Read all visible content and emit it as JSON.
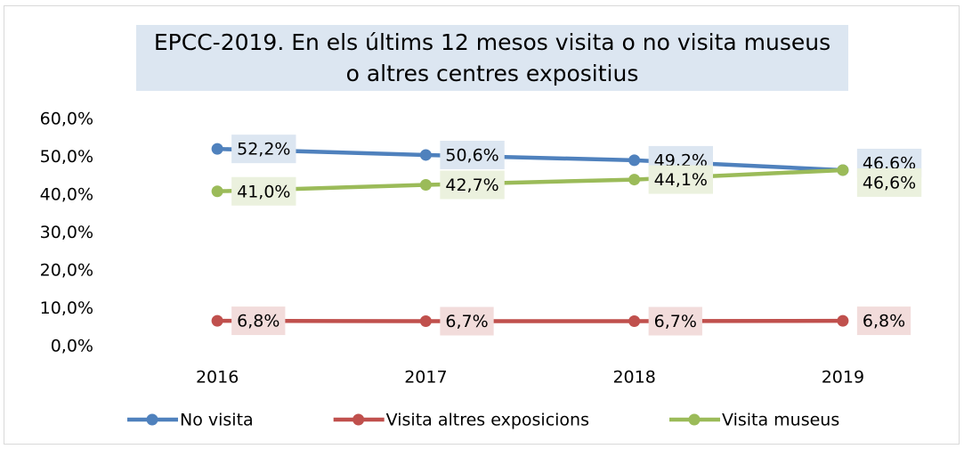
{
  "chart_data": {
    "type": "line",
    "title": "EPCC-2019. En els últims 12 mesos visita o no visita museus o altres centres expositius",
    "categories": [
      "2016",
      "2017",
      "2018",
      "2019"
    ],
    "series": [
      {
        "name": "No visita",
        "color": "#4f81bd",
        "label_bg": "#dce6f1",
        "values": [
          52.2,
          50.6,
          49.2,
          46.6
        ],
        "value_labels": [
          "52,2%",
          "50,6%",
          "49,2%",
          "46,6%"
        ]
      },
      {
        "name": "Visita altres exposicions",
        "color": "#c0504d",
        "label_bg": "#f2dcdb",
        "values": [
          6.8,
          6.7,
          6.7,
          6.8
        ],
        "value_labels": [
          "6,8%",
          "6,7%",
          "6,7%",
          "6,8%"
        ]
      },
      {
        "name": "Visita museus",
        "color": "#9bbb59",
        "label_bg": "#ebf1de",
        "values": [
          41.0,
          42.7,
          44.1,
          46.6
        ],
        "value_labels": [
          "41,0%",
          "42,7%",
          "44,1%",
          "46,6%"
        ]
      }
    ],
    "ylim": [
      0,
      60
    ],
    "yticks": [
      {
        "value": 0,
        "label": "0,0%"
      },
      {
        "value": 10,
        "label": "10,0%"
      },
      {
        "value": 20,
        "label": "20,0%"
      },
      {
        "value": 30,
        "label": "30,0%"
      },
      {
        "value": 40,
        "label": "40,0%"
      },
      {
        "value": 50,
        "label": "50,0%"
      },
      {
        "value": 60,
        "label": "60,0%"
      }
    ],
    "grid": false,
    "legend": "bottom"
  }
}
